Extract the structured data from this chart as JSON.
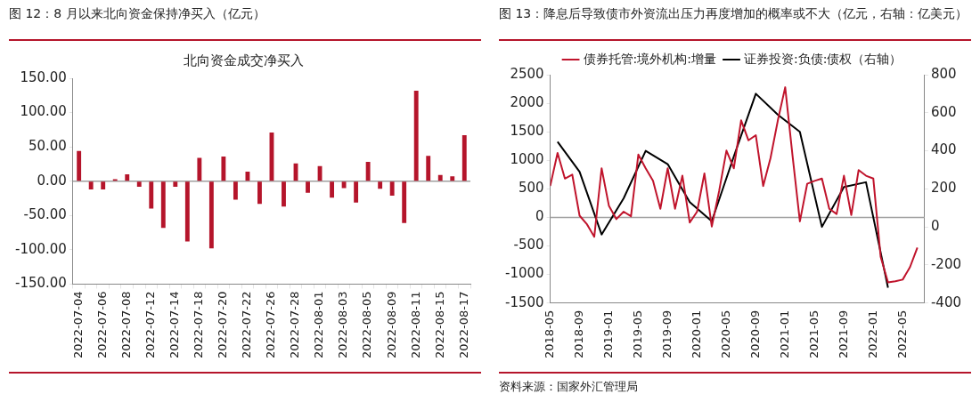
{
  "chart_data": [
    {
      "type": "bar",
      "title": "图 12：8 月以来北向资金保持净买入（亿元）",
      "subtitle": "北向资金成交净买入",
      "categories": [
        "2022-07-04",
        null,
        "2022-07-06",
        null,
        "2022-07-08",
        null,
        "2022-07-12",
        null,
        "2022-07-14",
        null,
        "2022-07-18",
        null,
        "2022-07-20",
        null,
        "2022-07-22",
        null,
        "2022-07-26",
        null,
        "2022-07-28",
        null,
        "2022-08-01",
        null,
        "2022-08-03",
        null,
        "2022-08-05",
        null,
        "2022-08-09",
        null,
        "2022-08-11",
        null,
        "2022-08-15",
        null,
        "2022-08-17"
      ],
      "values": [
        44,
        -12,
        -12,
        3,
        10,
        -8,
        -40,
        -68,
        -8,
        -88,
        34,
        -98,
        36,
        -27,
        14,
        -33,
        71,
        -37,
        26,
        -17,
        22,
        -24,
        -10,
        -31,
        28,
        -11,
        -21,
        -61,
        132,
        37,
        9,
        7,
        67
      ],
      "color": "#b5152b",
      "ylim": [
        -150,
        150
      ],
      "yticks": [
        {
          "value": -150,
          "label": "-150.00"
        },
        {
          "value": -100,
          "label": "-100.00"
        },
        {
          "value": -50,
          "label": "-50.00"
        },
        {
          "value": 0,
          "label": "0.00"
        },
        {
          "value": 50,
          "label": "50.00"
        },
        {
          "value": 100,
          "label": "100.00"
        },
        {
          "value": 150,
          "label": "150.00"
        }
      ],
      "ref_lines": [
        {
          "axis": "y",
          "value": 0,
          "color": "#a0a0a0"
        }
      ],
      "grid": false,
      "legend": false
    },
    {
      "type": "line",
      "title": "图 13：降息后导致债市外资流出压力再度增加的概率或不大（亿元，右轴：亿美元）",
      "x": [
        "2018-05",
        "2018-06",
        "2018-07",
        "2018-08",
        "2018-09",
        "2018-10",
        "2018-11",
        "2018-12",
        "2019-01",
        "2019-02",
        "2019-03",
        "2019-04",
        "2019-05",
        "2019-06",
        "2019-07",
        "2019-08",
        "2019-09",
        "2019-10",
        "2019-11",
        "2019-12",
        "2020-01",
        "2020-02",
        "2020-03",
        "2020-04",
        "2020-05",
        "2020-06",
        "2020-07",
        "2020-08",
        "2020-09",
        "2020-10",
        "2020-11",
        "2020-12",
        "2021-01",
        "2021-02",
        "2021-03",
        "2021-04",
        "2021-05",
        "2021-06",
        "2021-07",
        "2021-08",
        "2021-09",
        "2021-10",
        "2021-11",
        "2021-12",
        "2022-01",
        "2022-02",
        "2022-03",
        "2022-04",
        "2022-05",
        "2022-06",
        "2022-07"
      ],
      "series": [
        {
          "name": "债券托管:境外机构:增量",
          "color": "#c0142c",
          "values": [
            550,
            1130,
            680,
            750,
            30,
            -120,
            -340,
            860,
            200,
            -30,
            100,
            20,
            1100,
            860,
            640,
            150,
            860,
            150,
            730,
            -90,
            100,
            770,
            -160,
            460,
            1170,
            860,
            1700,
            1350,
            1440,
            550,
            1040,
            1700,
            2280,
            1080,
            -70,
            590,
            640,
            680,
            150,
            60,
            730,
            40,
            830,
            730,
            680,
            -690,
            -1140,
            -1120,
            -1090,
            -870,
            -530
          ]
        },
        {
          "name": "证券投资:负债:债权（右轴）",
          "color": "#000000",
          "axis": "y2",
          "x": [
            "2018-06",
            "2018-09",
            "2018-12",
            "2019-03",
            "2019-06",
            "2019-09",
            "2019-12",
            "2020-03",
            "2020-06",
            "2020-09",
            "2020-12",
            "2021-03",
            "2021-06",
            "2021-09",
            "2021-12",
            "2022-03"
          ],
          "values": [
            448,
            290,
            -40,
            150,
            400,
            330,
            130,
            30,
            370,
            700,
            590,
            500,
            0,
            210,
            235,
            -320
          ]
        }
      ],
      "xlim": [
        "2018-05",
        "2022-08"
      ],
      "xticks": [
        "2018-05",
        "2018-09",
        "2019-01",
        "2019-05",
        "2019-09",
        "2020-01",
        "2020-05",
        "2020-09",
        "2021-01",
        "2021-05",
        "2021-09",
        "2022-01",
        "2022-05"
      ],
      "ylim": [
        -1500,
        2500
      ],
      "yticks": [
        -1500,
        -1000,
        -500,
        0,
        500,
        1000,
        1500,
        2000,
        2500
      ],
      "y2lim": [
        -400,
        800
      ],
      "y2ticks": [
        -400,
        -200,
        0,
        200,
        400,
        600,
        800
      ],
      "ref_lines": [
        {
          "axis": "y",
          "value": 0,
          "color": "#a0a0a0"
        }
      ],
      "grid": false,
      "legend": "top",
      "marker": "none",
      "line_style": "solid",
      "annotations": [
        "资料来源：国家外汇管理局"
      ]
    }
  ]
}
